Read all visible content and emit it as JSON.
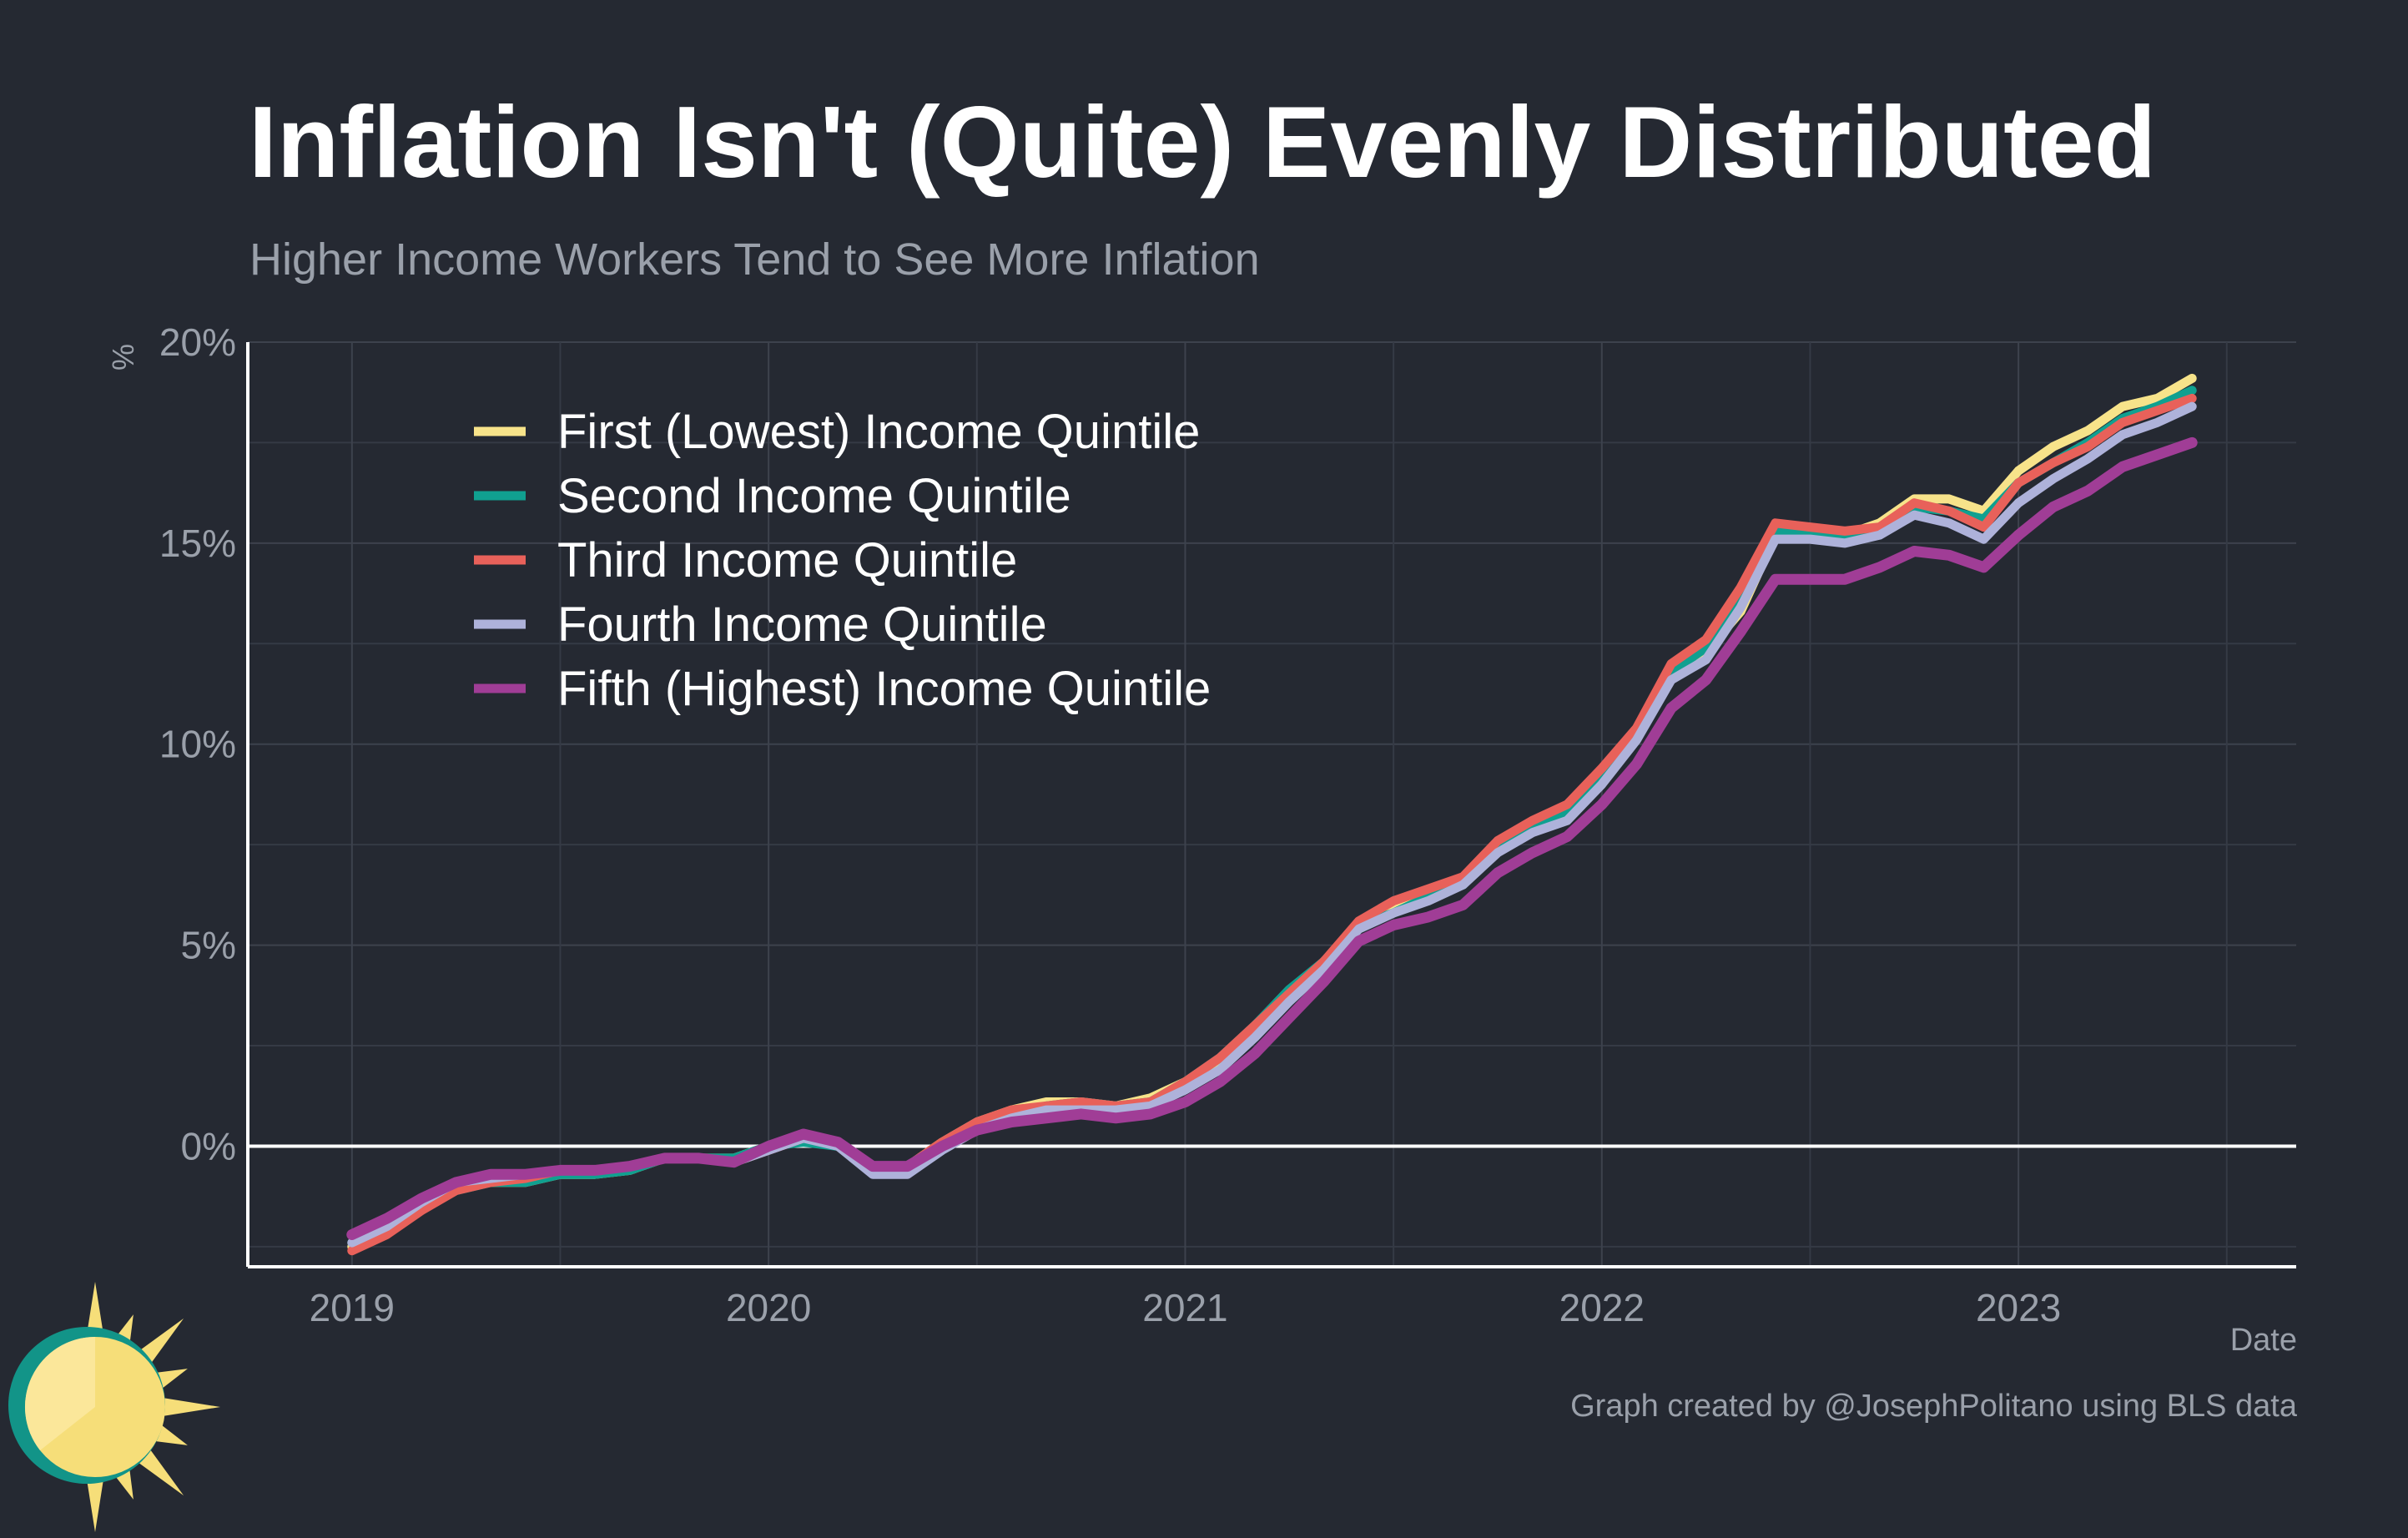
{
  "title": "Inflation Isn't (Quite) Evenly Distributed",
  "subtitle": "Higher Income Workers Tend to See More Inflation",
  "credit": "Graph created by @JosephPolitano using BLS data",
  "logo": {
    "icon": "sun-icon",
    "colors": {
      "sun": "#f6de79",
      "sun_inner": "#fbe79a",
      "ring": "#129488"
    }
  },
  "chart_data": {
    "type": "line",
    "title": "Inflation Isn't (Quite) Evenly Distributed",
    "subtitle": "Higher Income Workers Tend to See More Inflation",
    "xlabel": "Date",
    "ylabel": "%",
    "x_ticks": [
      "2019",
      "2020",
      "2021",
      "2022",
      "2023"
    ],
    "y_ticks": [
      "20%",
      "15%",
      "10%",
      "5%",
      "0%"
    ],
    "y_tick_values": [
      20,
      15,
      10,
      5,
      0
    ],
    "xlim": [
      "2018-10",
      "2023-09"
    ],
    "ylim": [
      -3,
      20
    ],
    "grid": true,
    "legend_position": "top-left",
    "dates": [
      "2019-01",
      "2019-02",
      "2019-03",
      "2019-04",
      "2019-05",
      "2019-06",
      "2019-07",
      "2019-08",
      "2019-09",
      "2019-10",
      "2019-11",
      "2019-12",
      "2020-01",
      "2020-02",
      "2020-03",
      "2020-04",
      "2020-05",
      "2020-06",
      "2020-07",
      "2020-08",
      "2020-09",
      "2020-10",
      "2020-11",
      "2020-12",
      "2021-01",
      "2021-02",
      "2021-03",
      "2021-04",
      "2021-05",
      "2021-06",
      "2021-07",
      "2021-08",
      "2021-09",
      "2021-10",
      "2021-11",
      "2021-12",
      "2022-01",
      "2022-02",
      "2022-03",
      "2022-04",
      "2022-05",
      "2022-06",
      "2022-07",
      "2022-08",
      "2022-09",
      "2022-10",
      "2022-11",
      "2022-12",
      "2023-01",
      "2023-02",
      "2023-03",
      "2023-04",
      "2023-05",
      "2023-06"
    ],
    "series": [
      {
        "name": "First (Lowest) Income Quintile",
        "color": "#f7e38a",
        "values": [
          -2.5,
          -2.1,
          -1.5,
          -1.0,
          -0.9,
          -0.9,
          -0.7,
          -0.7,
          -0.6,
          -0.3,
          -0.3,
          -0.3,
          0.0,
          0.2,
          0.1,
          -0.5,
          -0.5,
          0.1,
          0.6,
          0.9,
          1.1,
          1.1,
          1.0,
          1.2,
          1.6,
          2.1,
          2.9,
          3.8,
          4.6,
          5.5,
          5.9,
          6.3,
          6.6,
          7.4,
          8.0,
          8.3,
          9.2,
          10.2,
          11.8,
          12.3,
          13.3,
          15.2,
          15.2,
          15.2,
          15.5,
          16.1,
          16.1,
          15.8,
          16.8,
          17.4,
          17.8,
          18.4,
          18.6,
          19.1
        ]
      },
      {
        "name": "Second Income Quintile",
        "color": "#10a090",
        "values": [
          -2.4,
          -2.0,
          -1.5,
          -1.1,
          -0.9,
          -0.9,
          -0.7,
          -0.7,
          -0.6,
          -0.3,
          -0.3,
          -0.3,
          0.0,
          0.1,
          0.0,
          -0.6,
          -0.6,
          0.0,
          0.5,
          0.8,
          1.0,
          1.1,
          1.0,
          1.1,
          1.6,
          2.2,
          3.0,
          3.9,
          4.6,
          5.5,
          5.8,
          6.2,
          6.5,
          7.4,
          7.9,
          8.3,
          9.2,
          10.3,
          11.8,
          12.4,
          13.6,
          15.3,
          15.2,
          15.1,
          15.4,
          15.9,
          15.8,
          15.6,
          16.5,
          17.0,
          17.5,
          18.1,
          18.4,
          18.8
        ]
      },
      {
        "name": "Third Income Quintile",
        "color": "#e8615a",
        "values": [
          -2.6,
          -2.2,
          -1.6,
          -1.1,
          -0.9,
          -0.8,
          -0.6,
          -0.6,
          -0.5,
          -0.3,
          -0.3,
          -0.4,
          -0.1,
          0.2,
          0.1,
          -0.5,
          -0.5,
          0.1,
          0.6,
          0.9,
          1.0,
          1.1,
          1.0,
          1.1,
          1.6,
          2.2,
          3.0,
          3.8,
          4.6,
          5.6,
          6.1,
          6.4,
          6.7,
          7.6,
          8.1,
          8.5,
          9.4,
          10.4,
          12.0,
          12.6,
          13.9,
          15.5,
          15.4,
          15.3,
          15.4,
          16.0,
          15.8,
          15.4,
          16.5,
          17.0,
          17.4,
          18.0,
          18.3,
          18.6
        ]
      },
      {
        "name": "Fourth Income Quintile",
        "color": "#aeb2da",
        "values": [
          -2.4,
          -2.0,
          -1.4,
          -0.9,
          -0.8,
          -0.7,
          -0.6,
          -0.6,
          -0.5,
          -0.3,
          -0.3,
          -0.4,
          -0.1,
          0.2,
          0.0,
          -0.7,
          -0.7,
          -0.1,
          0.4,
          0.7,
          0.9,
          0.9,
          0.9,
          1.0,
          1.4,
          1.9,
          2.7,
          3.6,
          4.4,
          5.4,
          5.8,
          6.1,
          6.5,
          7.3,
          7.8,
          8.1,
          9.0,
          10.1,
          11.6,
          12.1,
          13.4,
          15.1,
          15.1,
          15.0,
          15.2,
          15.7,
          15.5,
          15.1,
          16.0,
          16.6,
          17.1,
          17.7,
          18.0,
          18.4
        ]
      },
      {
        "name": "Fifth (Highest) Income Quintile",
        "color": "#a03d96",
        "values": [
          -2.2,
          -1.8,
          -1.3,
          -0.9,
          -0.7,
          -0.7,
          -0.6,
          -0.6,
          -0.5,
          -0.3,
          -0.3,
          -0.4,
          0.0,
          0.3,
          0.1,
          -0.5,
          -0.5,
          0.0,
          0.4,
          0.6,
          0.7,
          0.8,
          0.7,
          0.8,
          1.1,
          1.6,
          2.3,
          3.2,
          4.1,
          5.1,
          5.5,
          5.7,
          6.0,
          6.8,
          7.3,
          7.7,
          8.5,
          9.5,
          10.9,
          11.6,
          12.8,
          14.1,
          14.1,
          14.1,
          14.4,
          14.8,
          14.7,
          14.4,
          15.2,
          15.9,
          16.3,
          16.9,
          17.2,
          17.5
        ]
      }
    ]
  }
}
